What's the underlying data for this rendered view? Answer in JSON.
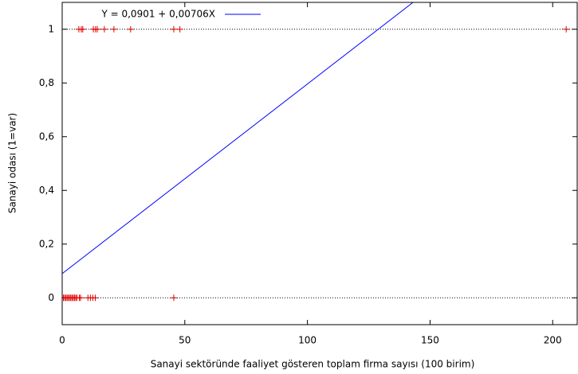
{
  "chart_data": {
    "type": "scatter",
    "xlabel": "Sanayi sektöründe faaliyet gösteren toplam firma sayısı (100 birim)",
    "ylabel": "Sanayi odası (1=var)",
    "xlim": [
      0,
      210
    ],
    "ylim": [
      -0.1,
      1.1
    ],
    "xticks": [
      0,
      50,
      100,
      150,
      200
    ],
    "yticks": [
      0,
      {
        "value": 0.2,
        "label": "0,2"
      },
      {
        "value": 0.4,
        "label": "0,4"
      },
      {
        "value": 0.6,
        "label": "0,6"
      },
      {
        "value": 0.8,
        "label": "0,8"
      },
      1
    ],
    "hlines": [
      0,
      1
    ],
    "points": {
      "color": "#e00000",
      "x": [
        6.8,
        7.8,
        8.4,
        12.7,
        13.6,
        14.3,
        17.2,
        21.1,
        27.9,
        45.5,
        48,
        205.5,
        0,
        0.5,
        1,
        1.5,
        2,
        2.5,
        3,
        3.5,
        4,
        4.5,
        5,
        5.5,
        6,
        7,
        7.5,
        10.5,
        11.5,
        12.5,
        13.5,
        45.5
      ],
      "values": [
        1,
        1,
        1,
        1,
        1,
        1,
        1,
        1,
        1,
        1,
        1,
        1,
        0,
        0,
        0,
        0,
        0,
        0,
        0,
        0,
        0,
        0,
        0,
        0,
        0,
        0,
        0,
        0,
        0,
        0,
        0,
        0
      ]
    },
    "fit": {
      "label": "Y = 0,0901 + 0,00706X",
      "color": "#0000ff",
      "intercept": 0.0901,
      "slope": 0.00706
    }
  }
}
